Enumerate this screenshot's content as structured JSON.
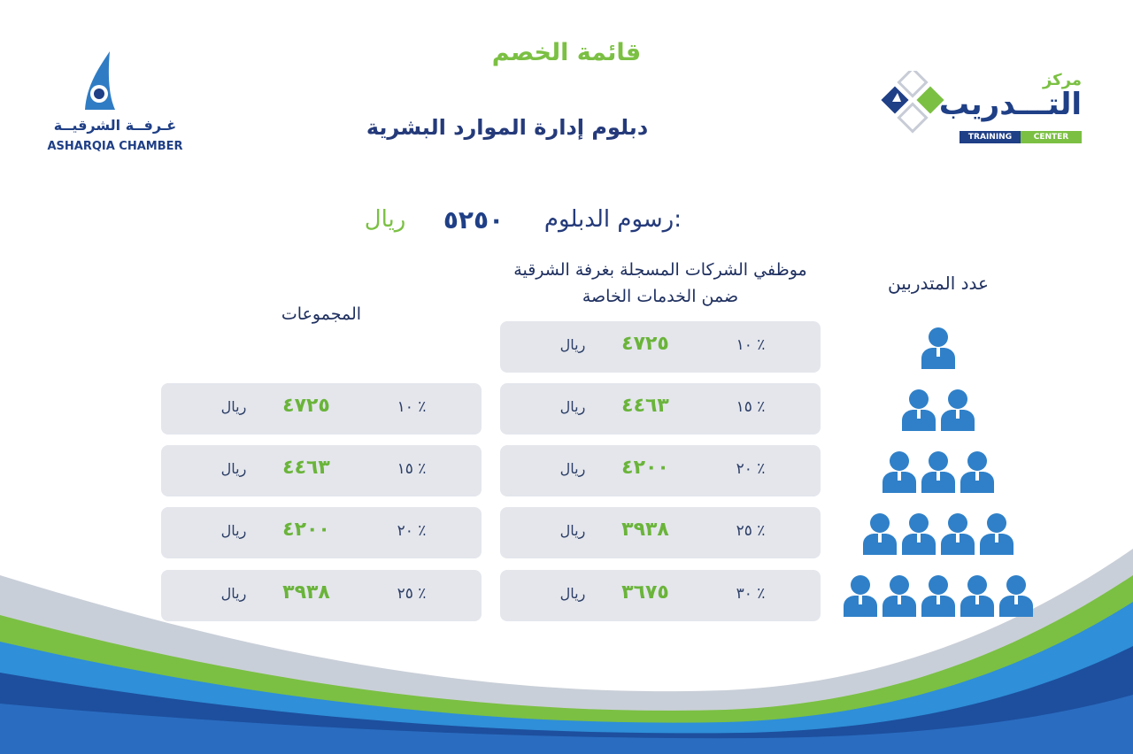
{
  "header": {
    "title": "قائمة الخصم",
    "subtitle": "دبلوم إدارة الموارد البشرية"
  },
  "logos": {
    "right": {
      "top_text": "مركز",
      "main_text": "التـــدريب",
      "en_left": "TRAINING",
      "en_right": "CENTER"
    },
    "left": {
      "ar_text": "غـرفــة الشرقيــة",
      "en_text": "ASHARQIA CHAMBER"
    }
  },
  "fee": {
    "label": "رسوم الدبلوم:",
    "value": "٥٢٥٠",
    "currency": "ريال"
  },
  "columns": {
    "trainees": "عدد المتدربين",
    "members": "موظفي الشركات المسجلة بغرفة الشرقية ضمن الخدمات الخاصة",
    "groups": "المجموعات"
  },
  "members_rows": [
    {
      "pct": "١٠ ٪",
      "amount": "٤٧٢٥",
      "currency": "ريال"
    },
    {
      "pct": "١٥ ٪",
      "amount": "٤٤٦٣",
      "currency": "ريال"
    },
    {
      "pct": "٢٠ ٪",
      "amount": "٤٢٠٠",
      "currency": "ريال"
    },
    {
      "pct": "٢٥ ٪",
      "amount": "٣٩٣٨",
      "currency": "ريال"
    },
    {
      "pct": "٣٠ ٪",
      "amount": "٣٦٧٥",
      "currency": "ريال"
    }
  ],
  "groups_rows": [
    {
      "pct": "١٠ ٪",
      "amount": "٤٧٢٥",
      "currency": "ريال"
    },
    {
      "pct": "١٥ ٪",
      "amount": "٤٤٦٣",
      "currency": "ريال"
    },
    {
      "pct": "٢٠ ٪",
      "amount": "٤٢٠٠",
      "currency": "ريال"
    },
    {
      "pct": "٢٥ ٪",
      "amount": "٣٩٣٨",
      "currency": "ريال"
    }
  ],
  "pyramid_rows": [
    1,
    2,
    3,
    4,
    5
  ],
  "colors": {
    "green": "#7bc043",
    "navy": "#243a7a",
    "person_blue": "#2f80c8",
    "row_bg": "#e4e6ec"
  }
}
